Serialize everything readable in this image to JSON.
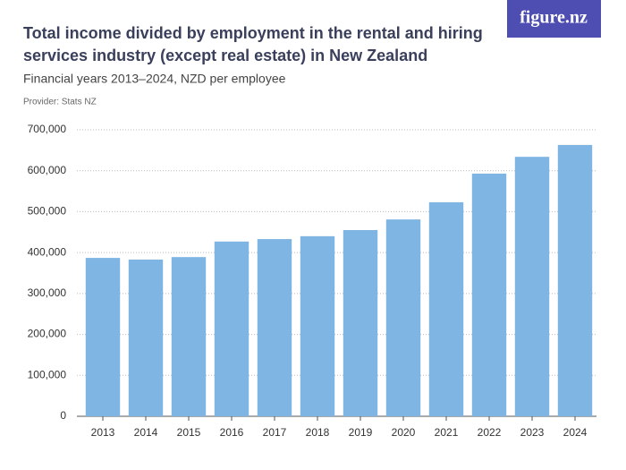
{
  "logo": "figure.nz",
  "chart_data": {
    "type": "bar",
    "title": [
      "Total income divided by employment in the rental and hiring",
      "services industry (except real estate) in New Zealand"
    ],
    "subtitle": "Financial years 2013–2024, NZD per employee",
    "provider": "Provider: Stats NZ",
    "categories": [
      "2013",
      "2014",
      "2015",
      "2016",
      "2017",
      "2018",
      "2019",
      "2020",
      "2021",
      "2022",
      "2023",
      "2024"
    ],
    "values": [
      387000,
      383000,
      389000,
      427000,
      433000,
      440000,
      455000,
      481000,
      523000,
      593000,
      634000,
      663000
    ],
    "color": "#7eb5e3",
    "ylim": [
      0,
      700000
    ],
    "yticks": [
      0,
      {
        "value": 100000,
        "label": "100,000"
      },
      {
        "value": 200000,
        "label": "200,000"
      },
      {
        "value": 300000,
        "label": "300,000"
      },
      {
        "value": 400000,
        "label": "400,000"
      },
      {
        "value": 500000,
        "label": "500,000"
      },
      {
        "value": 600000,
        "label": "600,000"
      },
      {
        "value": 700000,
        "label": "700,000"
      }
    ],
    "grid": true
  }
}
